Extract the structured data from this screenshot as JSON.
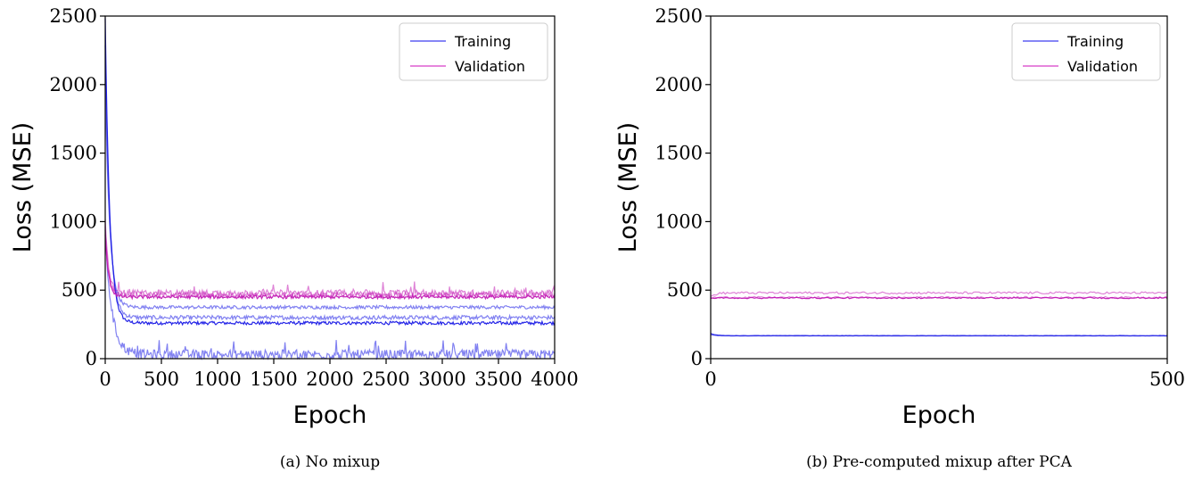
{
  "chart_data": [
    {
      "type": "line",
      "caption": "(a) No mixup",
      "xlabel": "Epoch",
      "ylabel": "Loss (MSE)",
      "xlim": [
        0,
        4000
      ],
      "ylim": [
        0,
        2500
      ],
      "xticks": [
        "0",
        "500",
        "1000",
        "1500",
        "2000",
        "2500",
        "3000",
        "3500",
        "4000"
      ],
      "yticks": [
        "0",
        "500",
        "1000",
        "1500",
        "2000",
        "2500"
      ],
      "legend": {
        "position": "top-right",
        "entries": [
          {
            "name": "Training",
            "color": "#3d3df0"
          },
          {
            "name": "Validation",
            "color": "#d63fc8"
          }
        ]
      },
      "series": [
        {
          "name": "Training",
          "color": "#1a1ae6",
          "runs": [
            {
              "start": 2480,
              "plateau": 260,
              "noise": 12,
              "knee": 40
            },
            {
              "start": 2300,
              "plateau": 300,
              "noise": 15,
              "knee": 40
            },
            {
              "start": 2000,
              "plateau": 375,
              "noise": 12,
              "knee": 40
            },
            {
              "start": 900,
              "plateau": 30,
              "noise": 35,
              "knee": 60
            }
          ]
        },
        {
          "name": "Validation",
          "color": "#c21bb5",
          "runs": [
            {
              "start": 900,
              "plateau": 450,
              "noise": 12,
              "knee": 30
            },
            {
              "start": 950,
              "plateau": 465,
              "noise": 18,
              "knee": 30
            },
            {
              "start": 1000,
              "plateau": 480,
              "noise": 22,
              "knee": 30
            }
          ]
        }
      ]
    },
    {
      "type": "line",
      "caption": "(b) Pre-computed mixup after PCA",
      "xlabel": "Epoch",
      "ylabel": "Loss (MSE)",
      "xlim": [
        0,
        500
      ],
      "ylim": [
        0,
        2500
      ],
      "xticks": [
        "0",
        "500"
      ],
      "yticks": [
        "0",
        "500",
        "1000",
        "1500",
        "2000",
        "2500"
      ],
      "legend": {
        "position": "top-right",
        "entries": [
          {
            "name": "Training",
            "color": "#3d3df0"
          },
          {
            "name": "Validation",
            "color": "#d63fc8"
          }
        ]
      },
      "series": [
        {
          "name": "Training",
          "color": "#1a1ae6",
          "runs": [
            {
              "start": 185,
              "plateau": 168,
              "noise": 1,
              "knee": 5
            },
            {
              "start": 175,
              "plateau": 166,
              "noise": 1,
              "knee": 5
            }
          ]
        },
        {
          "name": "Validation",
          "color": "#c21bb5",
          "runs": [
            {
              "start": 440,
              "plateau": 443,
              "noise": 5,
              "knee": 5
            },
            {
              "start": 445,
              "plateau": 447,
              "noise": 6,
              "knee": 5
            },
            {
              "start": 450,
              "plateau": 480,
              "noise": 8,
              "knee": 5
            }
          ]
        }
      ]
    }
  ]
}
